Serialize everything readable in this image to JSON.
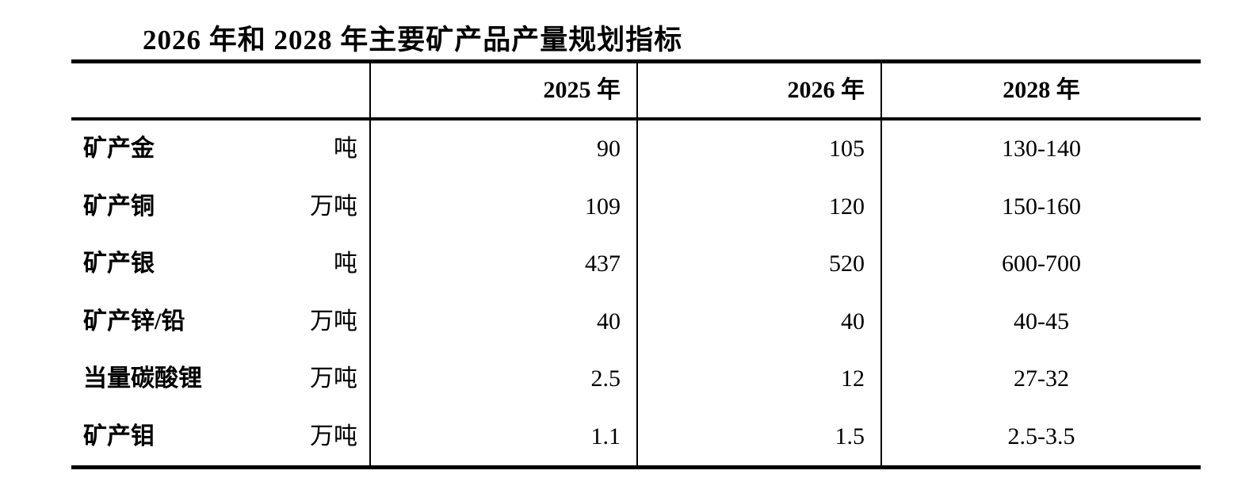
{
  "title": "2026 年和 2028 年主要矿产品产量规划指标",
  "table": {
    "header": {
      "col_item": "",
      "col_2025": "2025 年",
      "col_2026": "2026 年",
      "col_2028": "2028 年"
    },
    "rows": [
      {
        "name": "矿产金",
        "unit": "吨",
        "y2025": "90",
        "y2026": "105",
        "y2028": "130-140"
      },
      {
        "name": "矿产铜",
        "unit": "万吨",
        "y2025": "109",
        "y2026": "120",
        "y2028": "150-160"
      },
      {
        "name": "矿产银",
        "unit": "吨",
        "y2025": "437",
        "y2026": "520",
        "y2028": "600-700"
      },
      {
        "name": "矿产锌/铅",
        "unit": "万吨",
        "y2025": "40",
        "y2026": "40",
        "y2028": "40-45"
      },
      {
        "name": "当量碳酸锂",
        "unit": "万吨",
        "y2025": "2.5",
        "y2026": "12",
        "y2028": "27-32"
      },
      {
        "name": "矿产钼",
        "unit": "万吨",
        "y2025": "1.1",
        "y2026": "1.5",
        "y2028": "2.5-3.5"
      }
    ]
  }
}
